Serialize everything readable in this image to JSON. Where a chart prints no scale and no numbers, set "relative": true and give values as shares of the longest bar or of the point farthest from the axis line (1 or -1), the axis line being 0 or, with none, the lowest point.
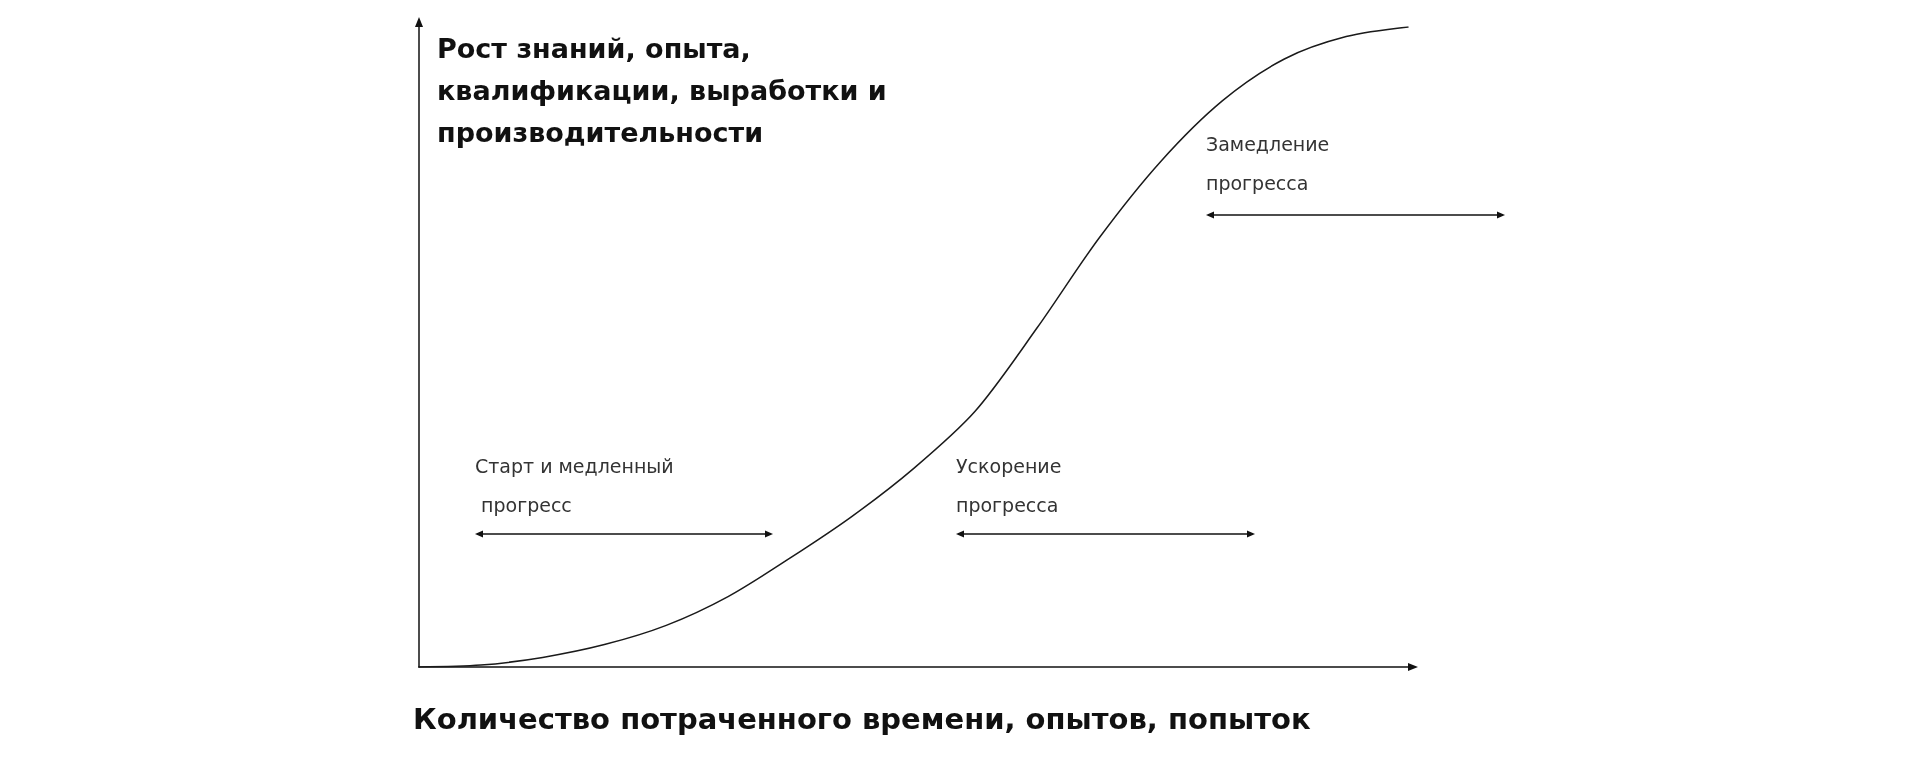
{
  "chart_data": {
    "type": "line",
    "relative": true,
    "xlabel": "Количество потраченного времени, опытов, попыток",
    "ylabel": "Рост знаний, опыта, квалификации, выработки и производительности",
    "categories": [
      null,
      null,
      null,
      null,
      null,
      null,
      null,
      null,
      null,
      null,
      null,
      null,
      null,
      null,
      null,
      null,
      null
    ],
    "series": [
      {
        "color": "#1a1a1a",
        "values": [
          0,
          0.003,
          0.015,
          0.035,
          0.065,
          0.11,
          0.17,
          0.235,
          0.31,
          0.4,
          0.53,
          0.67,
          0.79,
          0.885,
          0.95,
          0.985,
          1
        ]
      }
    ],
    "marker": "none",
    "grid": false,
    "annotations": [
      "Старт и медленный прогресс",
      "Ускорение прогресса",
      "Замедление прогресса"
    ]
  }
}
